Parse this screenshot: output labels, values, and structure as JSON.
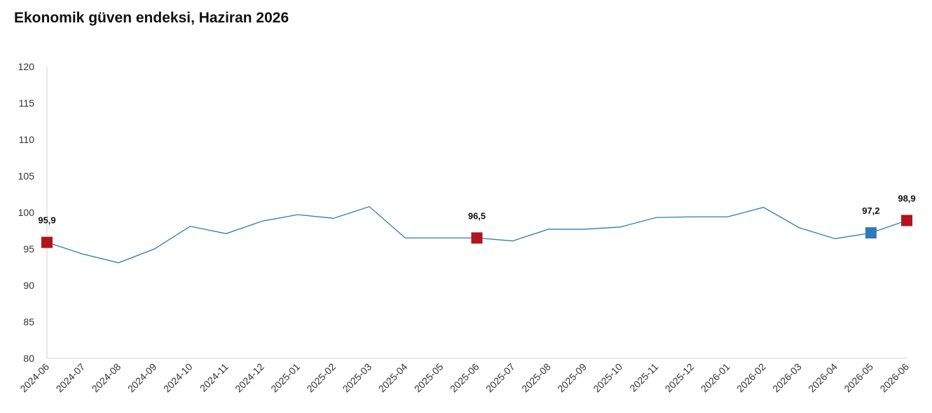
{
  "chart_data": {
    "type": "line",
    "title": "Ekonomik güven endeksi, Haziran 2026",
    "xlabel": "",
    "ylabel": "",
    "ylim": [
      80,
      120
    ],
    "yticks": [
      80,
      85,
      90,
      95,
      100,
      105,
      110,
      115,
      120
    ],
    "grid": false,
    "categories": [
      "2024-06",
      "2024-07",
      "2024-08",
      "2024-09",
      "2024-10",
      "2024-11",
      "2024-12",
      "2025-01",
      "2025-02",
      "2025-03",
      "2025-04",
      "2025-05",
      "2025-06",
      "2025-07",
      "2025-08",
      "2025-09",
      "2025-10",
      "2025-11",
      "2025-12",
      "2026-01",
      "2026-02",
      "2026-03",
      "2026-04",
      "2026-05",
      "2026-06"
    ],
    "series": [
      {
        "values": [
          95.9,
          94.3,
          93.1,
          95.0,
          98.1,
          97.1,
          98.8,
          99.7,
          99.2,
          100.8,
          96.5,
          96.5,
          96.5,
          96.1,
          97.7,
          97.7,
          98.0,
          99.3,
          99.4,
          99.4,
          100.7,
          97.9,
          96.4,
          97.2,
          98.9
        ],
        "color": "#2e7ab8"
      }
    ],
    "markers": [
      {
        "index": 0,
        "label": "95,9",
        "color": "#b0141c"
      },
      {
        "index": 12,
        "label": "96,5",
        "color": "#b0141c"
      },
      {
        "index": 23,
        "label": "97,2",
        "color": "#2e7ab8"
      },
      {
        "index": 24,
        "label": "98,9",
        "color": "#b0141c"
      }
    ]
  }
}
